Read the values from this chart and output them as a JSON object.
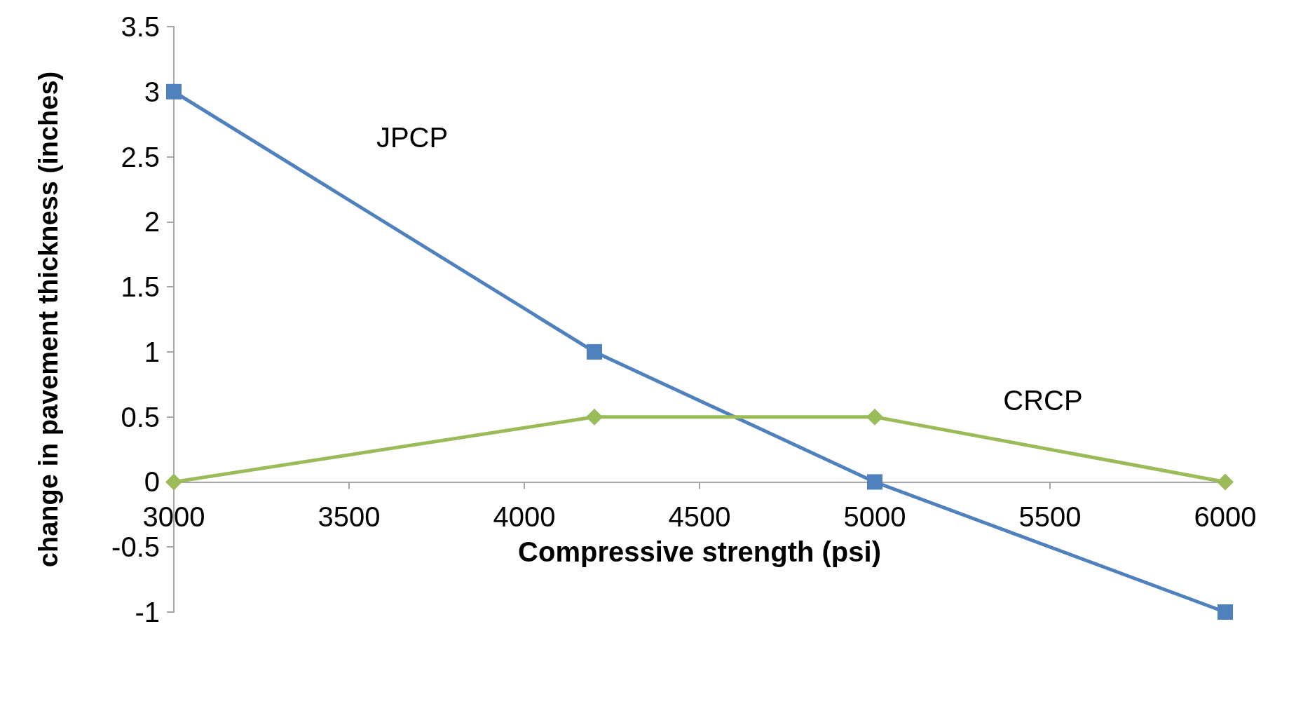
{
  "chart_data": {
    "type": "line",
    "xlabel": "Compressive strength (psi)",
    "ylabel": "change in pavement thickness (inches)",
    "x": [
      3000,
      4200,
      5000,
      6000
    ],
    "series": [
      {
        "name": "JPCP",
        "color": "#4f81bd",
        "values": [
          3,
          1,
          0,
          -1
        ],
        "marker": "square"
      },
      {
        "name": "CRCP",
        "color": "#9bbb59",
        "values": [
          0,
          0.5,
          0.5,
          0
        ],
        "marker": "diamond"
      }
    ],
    "xlim": [
      3000,
      6000
    ],
    "xticks": [
      3000,
      3500,
      4000,
      4500,
      5000,
      5500,
      6000
    ],
    "ylim": [
      -1,
      3.5
    ],
    "yticks": [
      -1,
      -0.5,
      0,
      0.5,
      1,
      1.5,
      2,
      2.5,
      3,
      3.5
    ],
    "legend": false,
    "line_style": "solid"
  }
}
